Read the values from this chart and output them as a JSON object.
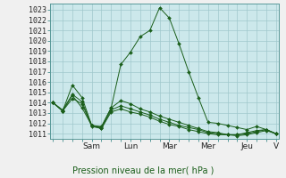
{
  "bg_color": "#cce8eb",
  "plot_bg_color": "#cce8eb",
  "outer_bg_color": "#f0f0f0",
  "grid_color": "#a0c8cc",
  "line_color": "#1a5e1a",
  "marker_color": "#1a5e1a",
  "xlabel": "Pression niveau de la mer( hPa )",
  "ylabel_values": [
    1011,
    1012,
    1013,
    1014,
    1015,
    1016,
    1017,
    1018,
    1019,
    1020,
    1021,
    1022,
    1023
  ],
  "ylim": [
    1010.5,
    1023.6
  ],
  "x_labels": [
    "",
    "Sam",
    "Lun",
    "Mar",
    "Mer",
    "Jeu",
    "V"
  ],
  "x_tick_positions": [
    0,
    4,
    8,
    12,
    16,
    20,
    23
  ],
  "series": [
    [
      1014.0,
      1013.2,
      1014.7,
      1013.5,
      1011.8,
      1011.6,
      1013.5,
      1017.7,
      1018.9,
      1020.4,
      1021.0,
      1023.2,
      1022.2,
      1019.7,
      1017.0,
      1014.5,
      1012.1,
      1012.0,
      1011.8,
      1011.6,
      1011.4,
      1011.7,
      1011.4,
      1011.0
    ],
    [
      1014.0,
      1013.2,
      1015.7,
      1014.5,
      1011.8,
      1011.7,
      1013.5,
      1014.2,
      1013.9,
      1013.4,
      1013.1,
      1012.7,
      1012.4,
      1012.1,
      1011.8,
      1011.5,
      1011.2,
      1011.1,
      1010.9,
      1010.9,
      1011.1,
      1011.3,
      1011.4,
      1011.0
    ],
    [
      1014.0,
      1013.3,
      1014.8,
      1014.1,
      1011.8,
      1011.5,
      1013.3,
      1013.7,
      1013.4,
      1013.1,
      1012.8,
      1012.4,
      1012.1,
      1011.8,
      1011.6,
      1011.4,
      1011.1,
      1011.0,
      1010.9,
      1010.9,
      1011.0,
      1011.2,
      1011.4,
      1011.0
    ],
    [
      1014.0,
      1013.2,
      1014.4,
      1013.9,
      1011.7,
      1011.5,
      1013.1,
      1013.4,
      1013.1,
      1012.9,
      1012.6,
      1012.2,
      1011.9,
      1011.7,
      1011.4,
      1011.2,
      1011.0,
      1010.9,
      1010.9,
      1010.8,
      1010.9,
      1011.1,
      1011.3,
      1011.0
    ]
  ],
  "n_points": 24
}
